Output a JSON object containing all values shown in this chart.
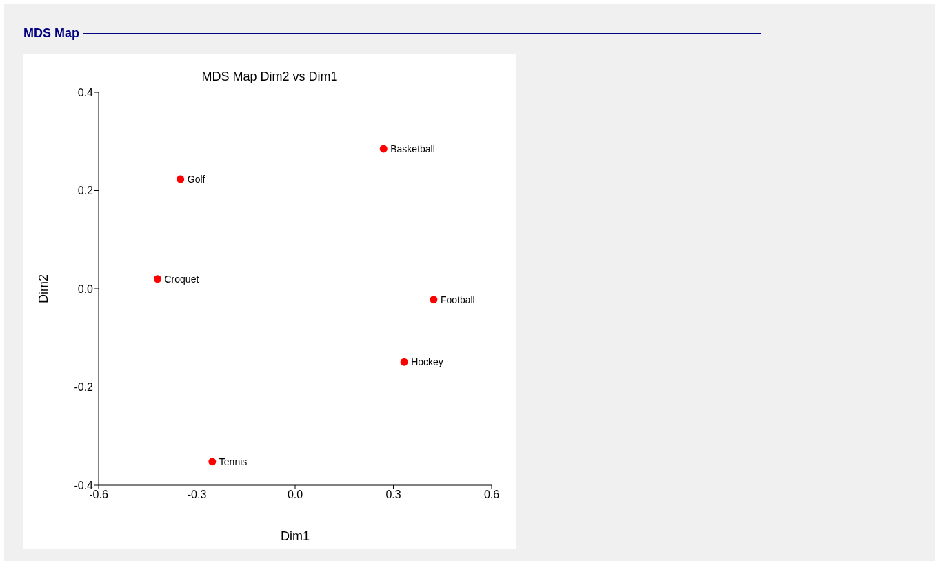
{
  "chart_data": {
    "type": "scatter",
    "title": "MDS Map",
    "subtitle": "MDS Map Dim2 vs Dim1",
    "xlabel": "Dim1",
    "ylabel": "Dim2",
    "series": [
      {
        "name": "Basketball",
        "color": "#ff0000",
        "x": [
          0.27
        ],
        "values": [
          0.285
        ]
      },
      {
        "name": "Golf",
        "color": "#ff0000",
        "x": [
          -0.35
        ],
        "values": [
          0.223
        ]
      },
      {
        "name": "Croquet",
        "color": "#ff0000",
        "x": [
          -0.42
        ],
        "values": [
          0.02
        ]
      },
      {
        "name": "Football",
        "color": "#ff0000",
        "x": [
          0.423
        ],
        "values": [
          -0.022
        ]
      },
      {
        "name": "Hockey",
        "color": "#ff0000",
        "x": [
          0.333
        ],
        "values": [
          -0.149
        ]
      },
      {
        "name": "Tennis",
        "color": "#ff0000",
        "x": [
          -0.253
        ],
        "values": [
          -0.352
        ]
      }
    ],
    "xlim": [
      -0.6,
      0.6
    ],
    "xticks": [
      -0.6,
      -0.3,
      {
        "value": 0,
        "label": "0.0"
      },
      0.3,
      0.6
    ],
    "ylim": [
      -0.4,
      0.4
    ],
    "yticks": [
      -0.4,
      -0.2,
      {
        "value": 0,
        "label": "0.0"
      },
      0.2,
      0.4
    ],
    "grid": false,
    "marker": "circle"
  }
}
